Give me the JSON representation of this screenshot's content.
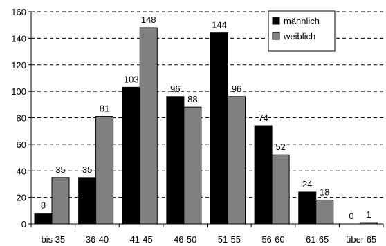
{
  "chart_data": {
    "type": "bar",
    "categories": [
      "bis 35",
      "36-40",
      "41-45",
      "46-50",
      "51-55",
      "56-60",
      "61-65",
      "über 65"
    ],
    "series": [
      {
        "name": "männlich",
        "color": "#000000",
        "values": [
          8,
          35,
          103,
          96,
          144,
          74,
          24,
          0
        ]
      },
      {
        "name": "weiblich",
        "color": "#808080",
        "values": [
          35,
          81,
          148,
          88,
          96,
          52,
          18,
          1
        ]
      }
    ],
    "ylim": [
      0,
      160
    ],
    "yticks": [
      0,
      20,
      40,
      60,
      80,
      100,
      120,
      140,
      160
    ],
    "grid": true,
    "grid_style": "dashed",
    "legend_position": "top-right",
    "data_labels": true
  }
}
